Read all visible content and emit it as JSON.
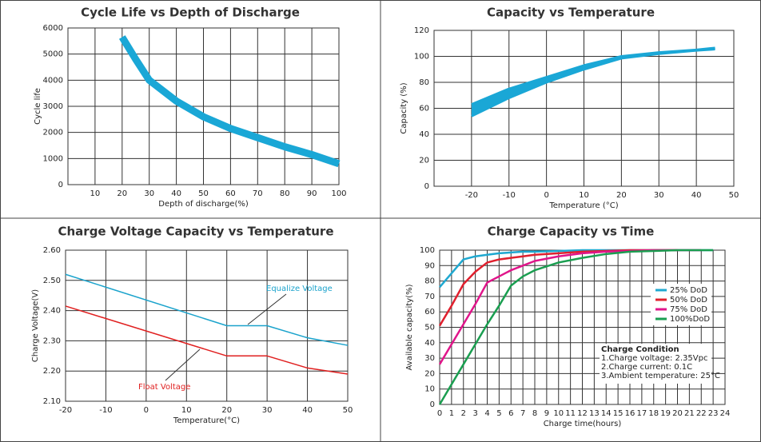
{
  "chart_data": [
    {
      "type": "line",
      "title": "Cycle Life vs Depth of Discharge",
      "x_label": "Depth of discharge(%)",
      "y_label": "Cycle life",
      "x": [
        20,
        25,
        30,
        40,
        50,
        60,
        70,
        80,
        90,
        100
      ],
      "series": [
        {
          "color": "#1aa7d6",
          "values": [
            5650,
            4800,
            4000,
            3200,
            2600,
            2150,
            1800,
            1450,
            1150,
            800
          ]
        }
      ],
      "xlim": [
        0,
        100
      ],
      "xticks": [
        10,
        20,
        30,
        40,
        50,
        60,
        70,
        80,
        90,
        100
      ],
      "ylim": [
        0,
        6000
      ],
      "yticks": [
        0,
        1000,
        2000,
        3000,
        4000,
        5000,
        6000
      ],
      "grid": true
    },
    {
      "type": "area",
      "title": "Capacity vs Temperature",
      "x_label": "Temperature (°C)",
      "y_label": "Capacity (%)",
      "x": [
        -20,
        -10,
        0,
        10,
        20,
        30,
        40,
        45
      ],
      "series": [
        {
          "color": "#1aa7d6",
          "values": [
            63,
            75,
            84,
            93,
            100,
            103,
            105,
            106.5
          ]
        },
        {
          "color": "#1aa7d6",
          "values": [
            54,
            68,
            80,
            90,
            98.5,
            102,
            104.5,
            105.5
          ]
        }
      ],
      "xlim": [
        -30,
        50
      ],
      "xticks": [
        -20,
        -10,
        0,
        10,
        20,
        30,
        40,
        50
      ],
      "ylim": [
        0,
        120
      ],
      "yticks": [
        0,
        20,
        40,
        60,
        80,
        100,
        120
      ],
      "grid": true
    },
    {
      "type": "line",
      "title": "Charge Voltage  Capacity  vs  Temperature",
      "x_label": "Temperature(°C)",
      "y_label": "Charge Voltage(V)",
      "x": [
        -20,
        20,
        30,
        40,
        50
      ],
      "series": [
        {
          "color": "#1ba3cc",
          "values": [
            2.52,
            2.35,
            2.35,
            2.31,
            2.285
          ]
        },
        {
          "color": "#e02020",
          "values": [
            2.415,
            2.25,
            2.25,
            2.21,
            2.19
          ]
        }
      ],
      "annotations": [
        "Equalize  Voltage",
        "Float  Voltage"
      ],
      "xlim": [
        -20,
        50
      ],
      "xticks": [
        -20,
        -10,
        0,
        10,
        20,
        30,
        40,
        50
      ],
      "ylim": [
        2.1,
        2.6
      ],
      "yticks": [
        {
          "value": 2.1,
          "label": "2.10"
        },
        {
          "value": 2.2,
          "label": "2.20"
        },
        {
          "value": 2.3,
          "label": "2.30"
        },
        {
          "value": 2.4,
          "label": "2.40"
        },
        {
          "value": 2.5,
          "label": "2.50"
        },
        {
          "value": 2.6,
          "label": "2.60"
        }
      ],
      "grid": true
    },
    {
      "type": "line",
      "title": "Charge  Capacity  vs  Time",
      "x_label": "Charge time(hours)",
      "y_label": "Available capacity(%)",
      "x": [
        0,
        1,
        2,
        3,
        4,
        5,
        6,
        7,
        8,
        10,
        12,
        14,
        16,
        18,
        20,
        22,
        23
      ],
      "series": [
        {
          "name": "25%  DoD",
          "color": "#1fa8d0",
          "values": [
            76,
            85,
            94,
            96,
            97,
            98,
            98.5,
            99,
            99,
            99.5,
            100,
            100,
            100,
            100,
            100,
            100,
            100
          ]
        },
        {
          "name": "50%  DoD",
          "color": "#e0202e",
          "values": [
            51,
            64,
            78,
            86,
            92,
            94,
            95,
            96,
            97,
            98,
            99,
            99.5,
            100,
            100,
            100,
            null,
            null
          ]
        },
        {
          "name": "75%  DoD",
          "color": "#e0158a",
          "values": [
            26,
            39,
            52,
            65,
            79,
            83,
            87,
            90,
            93,
            96,
            98,
            99,
            99.5,
            100,
            100,
            100,
            null
          ]
        },
        {
          "name": "100%DoD",
          "color": "#1a9e50",
          "values": [
            0,
            13,
            26,
            39,
            52,
            64,
            77,
            83,
            87,
            92,
            95,
            97.5,
            99,
            99.5,
            100,
            100,
            100
          ]
        }
      ],
      "annotations": [
        "Charge Condition",
        "1.Charge voltage: 2.35Vpc",
        "2.Charge current: 0.1C",
        "3.Ambient temperature: 25°C"
      ],
      "legend": "right",
      "xlim": [
        0,
        24
      ],
      "xticks": [
        0,
        1,
        2,
        3,
        4,
        5,
        6,
        7,
        8,
        9,
        10,
        11,
        12,
        13,
        14,
        15,
        16,
        17,
        18,
        19,
        20,
        21,
        22,
        23,
        24
      ],
      "ylim": [
        0,
        100
      ],
      "yticks": [
        0,
        10,
        20,
        30,
        40,
        50,
        60,
        70,
        80,
        90,
        100
      ],
      "grid": true
    }
  ]
}
